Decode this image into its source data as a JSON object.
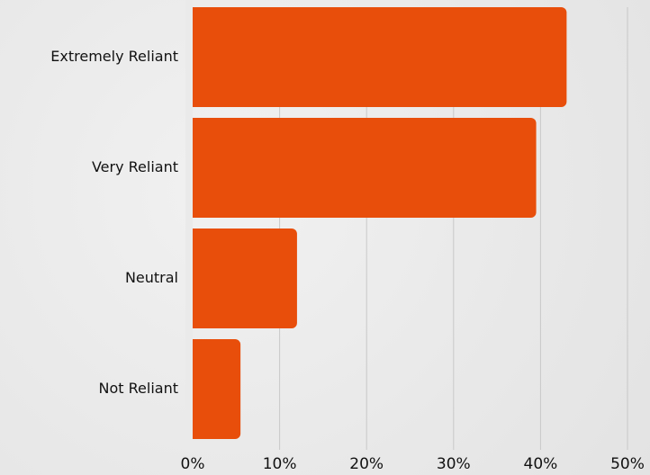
{
  "chart_data": {
    "type": "bar",
    "orientation": "horizontal",
    "categories": [
      "Extremely Reliant",
      "Very Reliant",
      "Neutral",
      "Not Reliant"
    ],
    "values": [
      43,
      39.5,
      12,
      5.5
    ],
    "value_unit": "%",
    "xlim": [
      0,
      50
    ],
    "x_ticks": [
      0,
      10,
      20,
      30,
      40,
      50
    ],
    "x_tick_labels": [
      "0%",
      "10%",
      "20%",
      "30%",
      "40%",
      "50%"
    ],
    "title": "",
    "xlabel": "",
    "ylabel": "",
    "grid": "vertical",
    "legend": "none",
    "colors": {
      "bar": "#e84e0b",
      "gridline": "#c8c8c8",
      "text": "#111111"
    }
  }
}
